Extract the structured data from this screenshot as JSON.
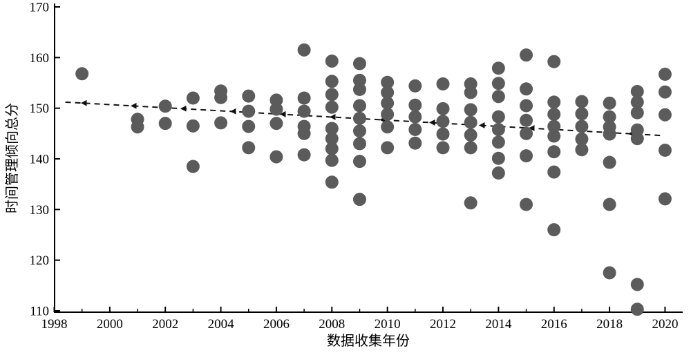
{
  "page": {
    "background": "#ffffff"
  },
  "chart_data": {
    "type": "scatter",
    "title": "",
    "xlabel": "数据收集年份",
    "ylabel": "时间管理倾向总分",
    "xlim": [
      1998,
      2020.7
    ],
    "ylim": [
      110,
      170
    ],
    "x_major_ticks": [
      1998,
      2000,
      2002,
      2004,
      2006,
      2008,
      2010,
      2012,
      2014,
      2016,
      2018,
      2020
    ],
    "x_minor_ticks": [
      1999,
      2001,
      2003,
      2005,
      2007,
      2009,
      2011,
      2013,
      2015,
      2017,
      2019
    ],
    "y_ticks": [
      110,
      120,
      130,
      140,
      150,
      160,
      170
    ],
    "grid": false,
    "legend": "none",
    "marker": {
      "shape": "circle",
      "color": "#5b5b5b",
      "radius_px": 9.5
    },
    "axis_color": "#000000",
    "points_by_year": [
      {
        "year": 1999,
        "scores": [
          156.8
        ]
      },
      {
        "year": 2001,
        "scores": [
          147.8,
          146.3
        ]
      },
      {
        "year": 2002,
        "scores": [
          150.4,
          147.0
        ]
      },
      {
        "year": 2003,
        "scores": [
          152.0,
          146.5,
          138.5
        ]
      },
      {
        "year": 2004,
        "scores": [
          153.4,
          152.1,
          147.1
        ]
      },
      {
        "year": 2005,
        "scores": [
          152.4,
          149.4,
          146.4,
          142.2
        ]
      },
      {
        "year": 2006,
        "scores": [
          151.6,
          149.8,
          147.0,
          140.4
        ]
      },
      {
        "year": 2007,
        "scores": [
          161.5,
          152.0,
          149.4,
          146.4,
          145.0,
          140.8
        ]
      },
      {
        "year": 2008,
        "scores": [
          159.3,
          155.3,
          152.7,
          150.2,
          146.0,
          144.0,
          142.0,
          139.7,
          135.4
        ]
      },
      {
        "year": 2009,
        "scores": [
          158.8,
          155.5,
          153.7,
          150.5,
          148.0,
          145.5,
          143.0,
          139.5,
          132.0
        ]
      },
      {
        "year": 2010,
        "scores": [
          155.1,
          153.1,
          151.0,
          148.8,
          146.3,
          142.2
        ]
      },
      {
        "year": 2011,
        "scores": [
          154.4,
          150.6,
          148.3,
          145.8,
          143.1
        ]
      },
      {
        "year": 2012,
        "scores": [
          154.8,
          149.9,
          147.4,
          144.9,
          142.2
        ]
      },
      {
        "year": 2013,
        "scores": [
          154.8,
          153.1,
          149.7,
          147.2,
          144.7,
          142.2,
          131.3
        ]
      },
      {
        "year": 2014,
        "scores": [
          157.9,
          154.9,
          152.3,
          148.3,
          145.8,
          143.3,
          140.1,
          137.2
        ]
      },
      {
        "year": 2015,
        "scores": [
          160.5,
          153.8,
          150.5,
          147.6,
          145.0,
          140.6,
          131.0
        ]
      },
      {
        "year": 2016,
        "scores": [
          159.2,
          151.2,
          148.8,
          146.4,
          144.5,
          141.4,
          137.4,
          126.0
        ]
      },
      {
        "year": 2017,
        "scores": [
          151.3,
          148.9,
          146.4,
          143.9,
          141.8
        ]
      },
      {
        "year": 2018,
        "scores": [
          151.0,
          148.3,
          146.3,
          144.9,
          139.3,
          131.0,
          117.5
        ]
      },
      {
        "year": 2019,
        "scores": [
          153.3,
          151.2,
          149.1,
          145.7,
          144.0,
          115.2,
          110.3
        ]
      },
      {
        "year": 2020,
        "scores": [
          156.7,
          153.2,
          148.7,
          141.7,
          132.1
        ]
      }
    ],
    "trendline": {
      "style": "dashed",
      "color": "#111111",
      "arrow_direction": "left",
      "x_start": 1998.4,
      "y_start": 151.2,
      "x_end": 2019.9,
      "y_end": 144.6
    }
  }
}
